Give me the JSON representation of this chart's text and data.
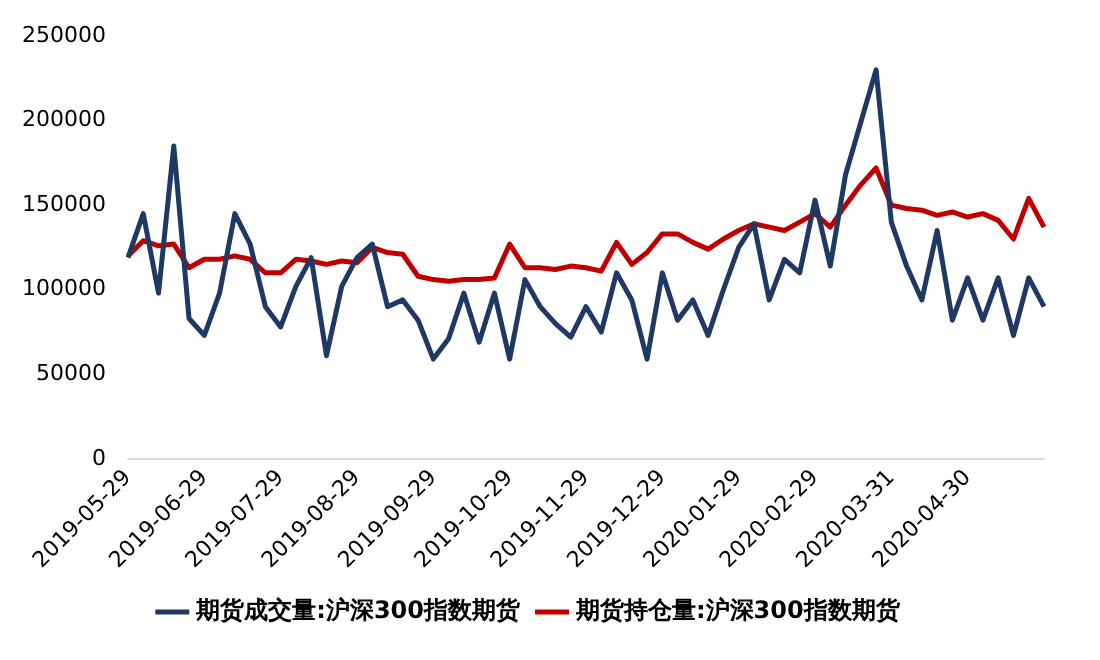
{
  "chart_data": {
    "type": "line",
    "categories": [
      "2019-05-29",
      null,
      null,
      null,
      null,
      "2019-06-29",
      null,
      null,
      null,
      null,
      "2019-07-29",
      null,
      null,
      null,
      null,
      "2019-08-29",
      null,
      null,
      null,
      null,
      "2019-09-29",
      null,
      null,
      null,
      null,
      "2019-10-29",
      null,
      null,
      null,
      null,
      "2019-11-29",
      null,
      null,
      null,
      null,
      "2019-12-29",
      null,
      null,
      null,
      null,
      "2020-01-29",
      null,
      null,
      null,
      null,
      "2020-02-29",
      null,
      null,
      null,
      null,
      "2020-03-31",
      null,
      null,
      null,
      null,
      "2020-04-30",
      null,
      null,
      null,
      null,
      null
    ],
    "series": [
      {
        "name": "期货成交量:沪深300指数期货",
        "color": "#1f3864",
        "values": [
          119000,
          145000,
          98000,
          185000,
          83000,
          73000,
          98000,
          145000,
          127000,
          90000,
          78000,
          102000,
          119000,
          61000,
          102000,
          119000,
          127000,
          90000,
          94000,
          82000,
          59000,
          71000,
          98000,
          69000,
          98000,
          59000,
          106000,
          90000,
          80000,
          72000,
          90000,
          75000,
          110000,
          94000,
          59000,
          110000,
          82000,
          94000,
          73000,
          100000,
          125000,
          139000,
          94000,
          118000,
          110000,
          153000,
          114000,
          168000,
          199000,
          230000,
          140000,
          114000,
          94000,
          135000,
          82000,
          107000,
          82000,
          107000,
          73000,
          107000,
          90000
        ]
      },
      {
        "name": "期货持仓量:沪深300指数期货",
        "color": "#c00000",
        "values": [
          120000,
          129000,
          126000,
          127000,
          113000,
          118000,
          118000,
          120000,
          118000,
          110000,
          110000,
          118000,
          117000,
          115000,
          117000,
          116000,
          125000,
          122000,
          121000,
          108000,
          106000,
          105000,
          106000,
          106000,
          107000,
          127000,
          113000,
          113000,
          112000,
          114000,
          113000,
          111000,
          128000,
          115000,
          122000,
          133000,
          133000,
          128000,
          124000,
          130000,
          135000,
          139000,
          137000,
          135000,
          140000,
          145000,
          137000,
          150000,
          162000,
          172000,
          150000,
          148000,
          147000,
          144000,
          146000,
          143000,
          145000,
          141000,
          130000,
          154000,
          137000
        ]
      }
    ],
    "ylim": [
      0,
      250000
    ],
    "yticks": [
      0,
      50000,
      100000,
      150000,
      200000,
      250000
    ],
    "grid": false,
    "legend": "bottom"
  }
}
